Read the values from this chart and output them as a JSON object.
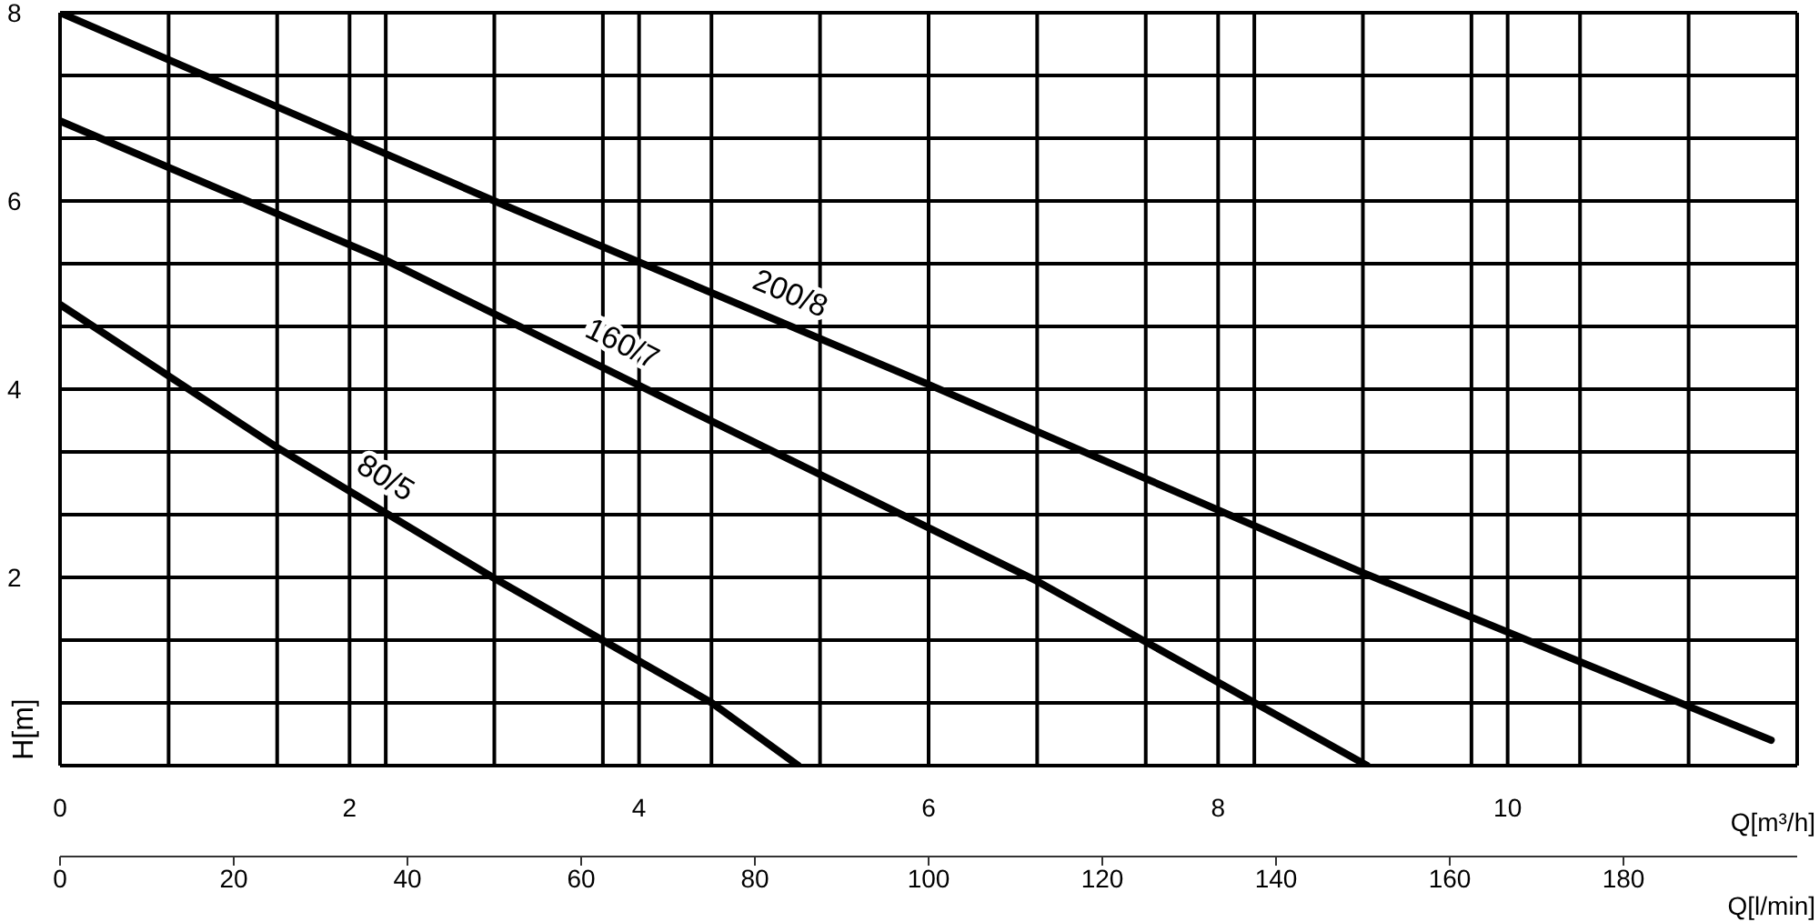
{
  "chart_data": {
    "type": "line",
    "ylabel": "H[m]",
    "xlabel": "Q[l/min]",
    "x2label": "Q[m³/h]",
    "xlim": [
      0,
      200
    ],
    "xticks": [
      0,
      20,
      40,
      60,
      80,
      100,
      120,
      140,
      160,
      180
    ],
    "x2lim": [
      0,
      12
    ],
    "x2ticks": [
      0,
      {
        "value": 0.75,
        "label": null
      },
      {
        "value": 1.5,
        "label": null
      },
      2,
      {
        "value": 2.25,
        "label": null
      },
      {
        "value": 3,
        "label": null
      },
      {
        "value": 3.75,
        "label": null
      },
      4,
      {
        "value": 4.5,
        "label": null
      },
      {
        "value": 5.25,
        "label": null
      },
      6,
      {
        "value": 6.75,
        "label": null
      },
      {
        "value": 7.5,
        "label": null
      },
      8,
      {
        "value": 8.25,
        "label": null
      },
      {
        "value": 9,
        "label": null
      },
      {
        "value": 9.75,
        "label": null
      },
      10,
      {
        "value": 10.5,
        "label": null
      },
      {
        "value": 11.25,
        "label": null
      },
      {
        "value": 12,
        "label": null
      }
    ],
    "ylim": [
      0,
      8
    ],
    "yticks": [
      {
        "value": 0,
        "label": null
      },
      {
        "value": 0.667,
        "label": null
      },
      {
        "value": 1.333,
        "label": null
      },
      2,
      {
        "value": 2.667,
        "label": null
      },
      {
        "value": 3.333,
        "label": null
      },
      4,
      {
        "value": 4.667,
        "label": null
      },
      {
        "value": 5.333,
        "label": null
      },
      6,
      {
        "value": 6.667,
        "label": null
      },
      {
        "value": 7.333,
        "label": null
      },
      8
    ],
    "grid": true,
    "marker": "none",
    "line_style": "solid",
    "series": [
      {
        "name": "200/8",
        "color": "#000000",
        "x": [
          0,
          50,
          100,
          150,
          197
        ],
        "values": [
          8,
          6,
          4.05,
          2.05,
          0.27
        ]
      },
      {
        "name": "160/7",
        "color": "#000000",
        "x": [
          0,
          37.5,
          75,
          112.5,
          137.5,
          150.5
        ],
        "values": [
          6.85,
          5.37,
          3.66,
          1.96,
          0.67,
          0
        ]
      },
      {
        "name": "80/5",
        "color": "#000000",
        "x": [
          0,
          25,
          50,
          75,
          85
        ],
        "values": [
          4.9,
          3.38,
          1.99,
          0.67,
          0
        ]
      }
    ]
  }
}
